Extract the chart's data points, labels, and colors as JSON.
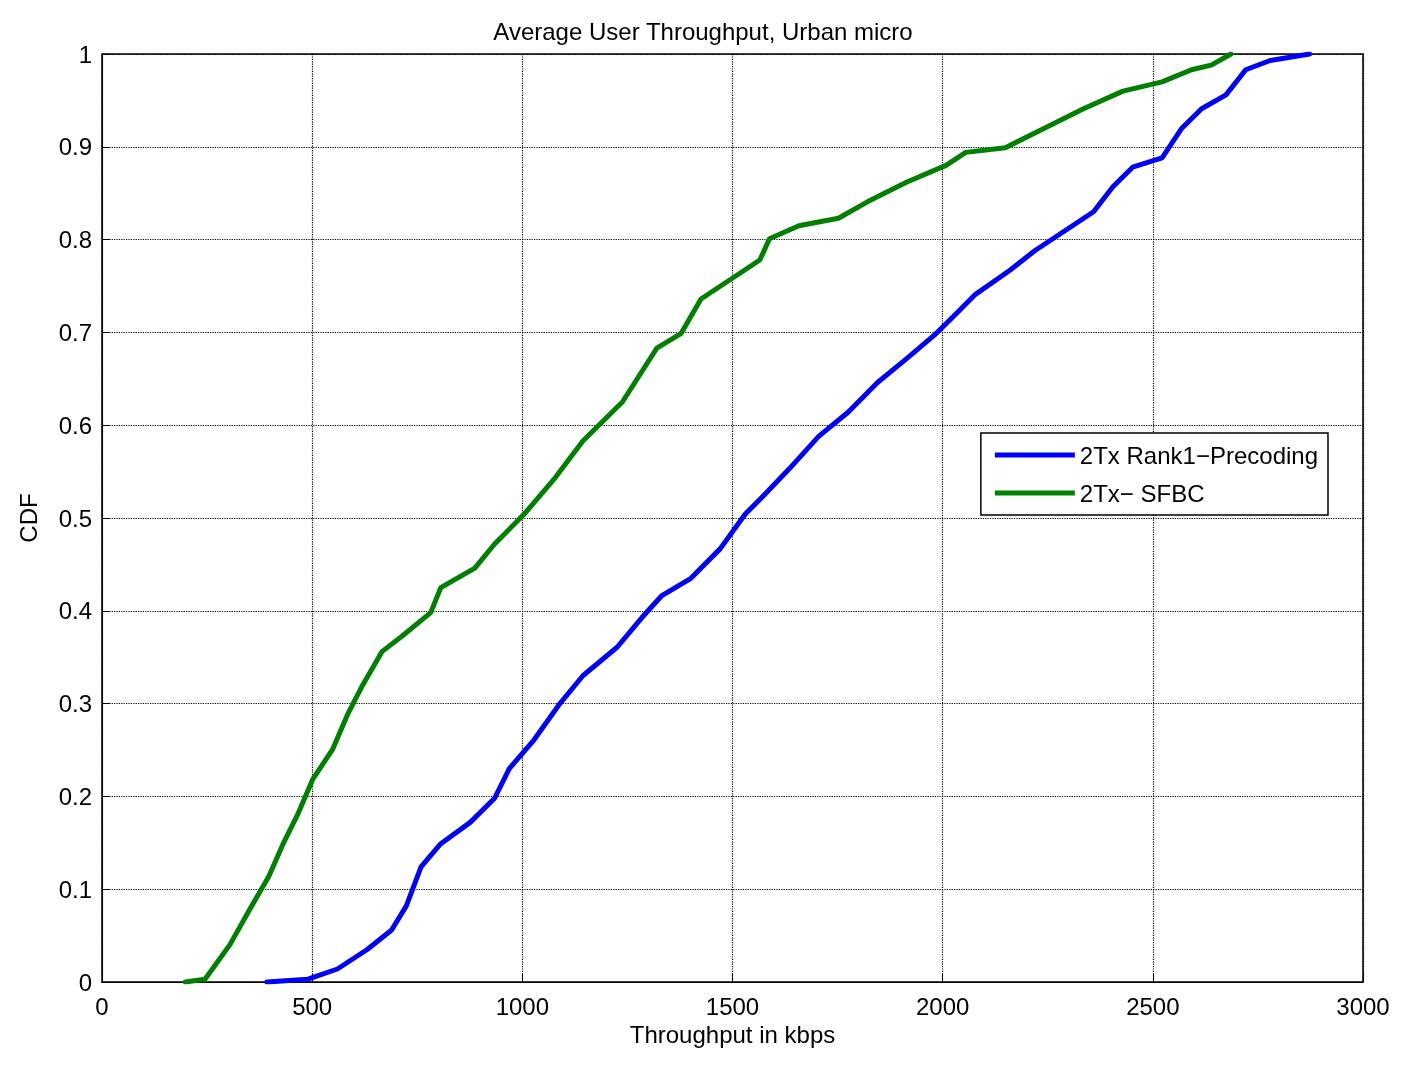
{
  "chart_data": {
    "type": "line",
    "title": "Average User Throughput, Urban micro",
    "xlabel": "Throughput in kbps",
    "ylabel": "CDF",
    "xlim": [
      0,
      3000
    ],
    "xticks": [
      0,
      500,
      1000,
      1500,
      2000,
      2500,
      3000
    ],
    "ylim": [
      0,
      1
    ],
    "yticks": [
      0,
      0.1,
      0.2,
      0.3,
      0.4,
      0.5,
      0.6,
      0.7,
      0.8,
      0.9,
      1
    ],
    "grid": true,
    "legend": "right",
    "marker": "none",
    "line_style": "solid",
    "series": [
      {
        "name": "2Tx Rank1−Precoding",
        "color": "#0000ff",
        "x": [
          392,
          490,
          560,
          631,
          689,
          724,
          759,
          806,
          876,
          934,
          969,
          1028,
          1086,
          1144,
          1226,
          1285,
          1331,
          1401,
          1471,
          1530,
          1576,
          1635,
          1705,
          1775,
          1845,
          1915,
          1985,
          2032,
          2078,
          2160,
          2219,
          2289,
          2359,
          2405,
          2452,
          2522,
          2569,
          2616,
          2674,
          2721,
          2779,
          2873
        ],
        "values": [
          0,
          0.003,
          0.014,
          0.035,
          0.056,
          0.082,
          0.124,
          0.149,
          0.172,
          0.198,
          0.23,
          0.261,
          0.298,
          0.33,
          0.361,
          0.393,
          0.416,
          0.435,
          0.467,
          0.504,
          0.525,
          0.553,
          0.588,
          0.614,
          0.646,
          0.672,
          0.699,
          0.72,
          0.741,
          0.767,
          0.788,
          0.809,
          0.83,
          0.857,
          0.878,
          0.888,
          0.92,
          0.941,
          0.956,
          0.983,
          0.993,
          1
        ]
      },
      {
        "name": "2Tx− SFBC",
        "color": "#008000",
        "x": [
          198,
          245,
          304,
          350,
          397,
          432,
          467,
          502,
          549,
          584,
          619,
          666,
          712,
          782,
          806,
          887,
          934,
          1004,
          1074,
          1144,
          1238,
          1320,
          1378,
          1425,
          1495,
          1565,
          1588,
          1658,
          1752,
          1822,
          1915,
          2008,
          2055,
          2149,
          2242,
          2335,
          2429,
          2522,
          2592,
          2639,
          2686
        ],
        "values": [
          0,
          0.003,
          0.04,
          0.077,
          0.114,
          0.15,
          0.182,
          0.219,
          0.251,
          0.288,
          0.319,
          0.356,
          0.372,
          0.398,
          0.425,
          0.446,
          0.472,
          0.504,
          0.541,
          0.583,
          0.625,
          0.683,
          0.699,
          0.736,
          0.757,
          0.778,
          0.801,
          0.815,
          0.823,
          0.841,
          0.862,
          0.88,
          0.894,
          0.899,
          0.92,
          0.941,
          0.96,
          0.97,
          0.983,
          0.988,
          1
        ]
      }
    ]
  }
}
